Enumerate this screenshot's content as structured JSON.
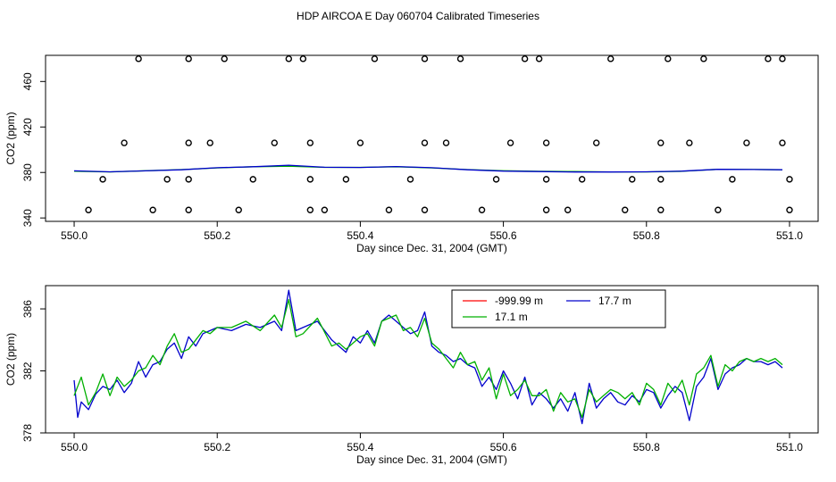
{
  "page": {
    "title": "HDP AIRCOA E  Day 060704  Calibrated Timeseries"
  },
  "chart_data": [
    {
      "type": "scatter",
      "title": "",
      "xlabel": "Day since Dec. 31, 2004 (GMT)",
      "ylabel": "CO2 (ppm)",
      "xlim": [
        549.96,
        551.04
      ],
      "ylim": [
        337,
        483
      ],
      "xticks": [
        "550.0",
        "550.2",
        "550.4",
        "550.6",
        "550.8",
        "551.0"
      ],
      "yticks": [
        "340",
        "380",
        "420",
        "460"
      ],
      "grid": false,
      "scatter_points": [
        [
          550.09,
          480
        ],
        [
          550.16,
          480
        ],
        [
          550.21,
          480
        ],
        [
          550.3,
          480
        ],
        [
          550.32,
          480
        ],
        [
          550.42,
          480
        ],
        [
          550.49,
          480
        ],
        [
          550.54,
          480
        ],
        [
          550.63,
          480
        ],
        [
          550.65,
          480
        ],
        [
          550.75,
          480
        ],
        [
          550.83,
          480
        ],
        [
          550.88,
          480
        ],
        [
          550.97,
          480
        ],
        [
          550.99,
          480
        ],
        [
          550.07,
          406
        ],
        [
          550.16,
          406
        ],
        [
          550.19,
          406
        ],
        [
          550.28,
          406
        ],
        [
          550.33,
          406
        ],
        [
          550.4,
          406
        ],
        [
          550.49,
          406
        ],
        [
          550.52,
          406
        ],
        [
          550.61,
          406
        ],
        [
          550.66,
          406
        ],
        [
          550.73,
          406
        ],
        [
          550.82,
          406
        ],
        [
          550.86,
          406
        ],
        [
          550.94,
          406
        ],
        [
          550.99,
          406
        ],
        [
          550.04,
          374
        ],
        [
          550.13,
          374
        ],
        [
          550.16,
          374
        ],
        [
          550.25,
          374
        ],
        [
          550.33,
          374
        ],
        [
          550.38,
          374
        ],
        [
          550.47,
          374
        ],
        [
          550.59,
          374
        ],
        [
          550.66,
          374
        ],
        [
          550.71,
          374
        ],
        [
          550.78,
          374
        ],
        [
          550.82,
          374
        ],
        [
          550.92,
          374
        ],
        [
          551.0,
          374
        ],
        [
          550.02,
          347
        ],
        [
          550.11,
          347
        ],
        [
          550.16,
          347
        ],
        [
          550.23,
          347
        ],
        [
          550.33,
          347
        ],
        [
          550.35,
          347
        ],
        [
          550.44,
          347
        ],
        [
          550.49,
          347
        ],
        [
          550.57,
          347
        ],
        [
          550.66,
          347
        ],
        [
          550.69,
          347
        ],
        [
          550.77,
          347
        ],
        [
          550.82,
          347
        ],
        [
          550.9,
          347
        ],
        [
          551.0,
          347
        ]
      ],
      "line_series": [
        {
          "color": "#00b000",
          "x": [
            550.0,
            550.05,
            550.1,
            550.15,
            550.2,
            550.25,
            550.3,
            550.35,
            550.4,
            550.45,
            550.5,
            550.55,
            550.6,
            550.65,
            550.7,
            550.75,
            550.8,
            550.85,
            550.9,
            550.95,
            550.99
          ],
          "y": [
            381,
            380.5,
            381.5,
            382.5,
            384,
            385,
            385.5,
            384.5,
            384.5,
            385,
            384,
            382.5,
            381.5,
            381,
            380.8,
            380.5,
            380.5,
            381,
            382.8,
            382.6,
            382.4
          ]
        },
        {
          "color": "#0000cc",
          "x": [
            550.0,
            550.05,
            550.1,
            550.15,
            550.2,
            550.25,
            550.3,
            550.35,
            550.4,
            550.45,
            550.5,
            550.55,
            550.6,
            550.65,
            550.7,
            550.75,
            550.8,
            550.85,
            550.9,
            550.95,
            550.99
          ],
          "y": [
            381.4,
            380.6,
            381.4,
            382.4,
            384.2,
            385,
            386.4,
            384.6,
            384.4,
            385.2,
            384.2,
            382.4,
            381.2,
            380.8,
            380.4,
            380.4,
            380.6,
            381.2,
            382.8,
            382.6,
            382.4
          ]
        }
      ]
    },
    {
      "type": "line",
      "title": "",
      "xlabel": "Day since Dec. 31, 2004 (GMT)",
      "ylabel": "CO2 (ppm)",
      "xlim": [
        549.96,
        551.04
      ],
      "ylim": [
        378,
        387.5
      ],
      "xticks": [
        "550.0",
        "550.2",
        "550.4",
        "550.6",
        "550.8",
        "551.0"
      ],
      "yticks": [
        "378",
        "382",
        "386"
      ],
      "grid": false,
      "legend": {
        "placement": "top-center",
        "entries": [
          {
            "name": "-999.99 m",
            "color": "#ff0000"
          },
          {
            "name": "17.7 m",
            "color": "#0000cc"
          },
          {
            "name": "17.1 m",
            "color": "#00b000"
          }
        ]
      },
      "series": [
        {
          "name": "-999.99 m",
          "color": "#ff0000",
          "x": [],
          "y": []
        },
        {
          "name": "17.7 m",
          "color": "#0000cc",
          "x": [
            550.0,
            550.005,
            550.01,
            550.02,
            550.03,
            550.04,
            550.05,
            550.06,
            550.07,
            550.08,
            550.09,
            550.1,
            550.11,
            550.12,
            550.13,
            550.14,
            550.15,
            550.16,
            550.17,
            550.18,
            550.19,
            550.2,
            550.22,
            550.24,
            550.26,
            550.28,
            550.29,
            550.3,
            550.31,
            550.32,
            550.34,
            550.36,
            550.37,
            550.38,
            550.39,
            550.4,
            550.41,
            550.42,
            550.43,
            550.44,
            550.45,
            550.46,
            550.47,
            550.48,
            550.49,
            550.5,
            550.51,
            550.52,
            550.53,
            550.54,
            550.55,
            550.56,
            550.57,
            550.58,
            550.59,
            550.6,
            550.61,
            550.62,
            550.63,
            550.64,
            550.65,
            550.66,
            550.67,
            550.68,
            550.69,
            550.7,
            550.71,
            550.72,
            550.73,
            550.74,
            550.75,
            550.76,
            550.77,
            550.78,
            550.79,
            550.8,
            550.81,
            550.82,
            550.83,
            550.84,
            550.85,
            550.86,
            550.87,
            550.88,
            550.89,
            550.9,
            550.91,
            550.92,
            550.93,
            550.94,
            550.95,
            550.96,
            550.97,
            550.98,
            550.99
          ],
          "y": [
            381.4,
            379.0,
            380.0,
            379.5,
            380.5,
            381.0,
            380.8,
            381.4,
            380.6,
            381.2,
            382.6,
            381.6,
            382.4,
            382.6,
            383.4,
            383.8,
            382.8,
            384.2,
            383.6,
            384.4,
            384.6,
            384.8,
            384.6,
            385.0,
            384.8,
            385.2,
            384.6,
            387.2,
            384.6,
            384.8,
            385.2,
            384.0,
            383.6,
            383.2,
            384.2,
            383.8,
            384.6,
            383.8,
            385.2,
            385.6,
            385.2,
            384.8,
            384.4,
            384.6,
            385.8,
            383.6,
            383.2,
            383.0,
            382.6,
            382.8,
            382.4,
            382.2,
            381.0,
            381.6,
            380.8,
            382.0,
            381.2,
            380.2,
            381.6,
            379.8,
            380.6,
            380.2,
            379.6,
            380.2,
            379.4,
            380.6,
            378.6,
            381.2,
            379.6,
            380.2,
            380.6,
            380.0,
            379.8,
            380.4,
            380.0,
            380.8,
            380.6,
            379.6,
            380.4,
            381.0,
            380.6,
            378.8,
            381.0,
            381.6,
            382.8,
            380.8,
            381.8,
            382.2,
            382.4,
            382.8,
            382.6,
            382.6,
            382.4,
            382.6,
            382.2
          ]
        },
        {
          "name": "17.1 m",
          "color": "#00b000",
          "x": [
            550.0,
            550.01,
            550.02,
            550.03,
            550.04,
            550.05,
            550.06,
            550.07,
            550.08,
            550.09,
            550.1,
            550.11,
            550.12,
            550.13,
            550.14,
            550.15,
            550.16,
            550.17,
            550.18,
            550.19,
            550.2,
            550.22,
            550.24,
            550.26,
            550.28,
            550.29,
            550.3,
            550.31,
            550.32,
            550.34,
            550.36,
            550.37,
            550.38,
            550.39,
            550.4,
            550.41,
            550.42,
            550.43,
            550.44,
            550.45,
            550.46,
            550.47,
            550.48,
            550.49,
            550.5,
            550.51,
            550.52,
            550.53,
            550.54,
            550.55,
            550.56,
            550.57,
            550.58,
            550.59,
            550.6,
            550.61,
            550.62,
            550.63,
            550.64,
            550.65,
            550.66,
            550.67,
            550.68,
            550.69,
            550.7,
            550.71,
            550.72,
            550.73,
            550.74,
            550.75,
            550.76,
            550.77,
            550.78,
            550.79,
            550.8,
            550.81,
            550.82,
            550.83,
            550.84,
            550.85,
            550.86,
            550.87,
            550.88,
            550.89,
            550.9,
            550.91,
            550.92,
            550.93,
            550.94,
            550.95,
            550.96,
            550.97,
            550.98,
            550.99
          ],
          "y": [
            380.4,
            381.6,
            379.8,
            380.6,
            381.8,
            380.4,
            381.6,
            381.0,
            381.4,
            382.0,
            382.2,
            383.0,
            382.4,
            383.6,
            384.4,
            383.2,
            383.4,
            384.0,
            384.6,
            384.4,
            384.8,
            384.8,
            385.2,
            384.6,
            385.6,
            384.8,
            386.6,
            384.2,
            384.4,
            385.4,
            383.6,
            383.8,
            383.4,
            383.8,
            384.2,
            384.4,
            383.6,
            385.2,
            385.4,
            385.6,
            384.6,
            384.8,
            384.2,
            385.4,
            383.8,
            383.4,
            382.8,
            382.2,
            383.2,
            382.4,
            382.6,
            381.4,
            382.2,
            380.2,
            381.8,
            380.4,
            380.8,
            381.4,
            380.4,
            380.4,
            380.8,
            379.4,
            380.6,
            380.0,
            380.2,
            379.0,
            380.8,
            380.0,
            380.4,
            380.8,
            380.6,
            380.2,
            380.6,
            379.8,
            381.2,
            380.8,
            379.8,
            381.2,
            380.6,
            381.4,
            379.8,
            381.8,
            382.2,
            383.0,
            381.0,
            382.4,
            382.0,
            382.6,
            382.8,
            382.6,
            382.8,
            382.6,
            382.8,
            382.4
          ]
        }
      ]
    }
  ]
}
